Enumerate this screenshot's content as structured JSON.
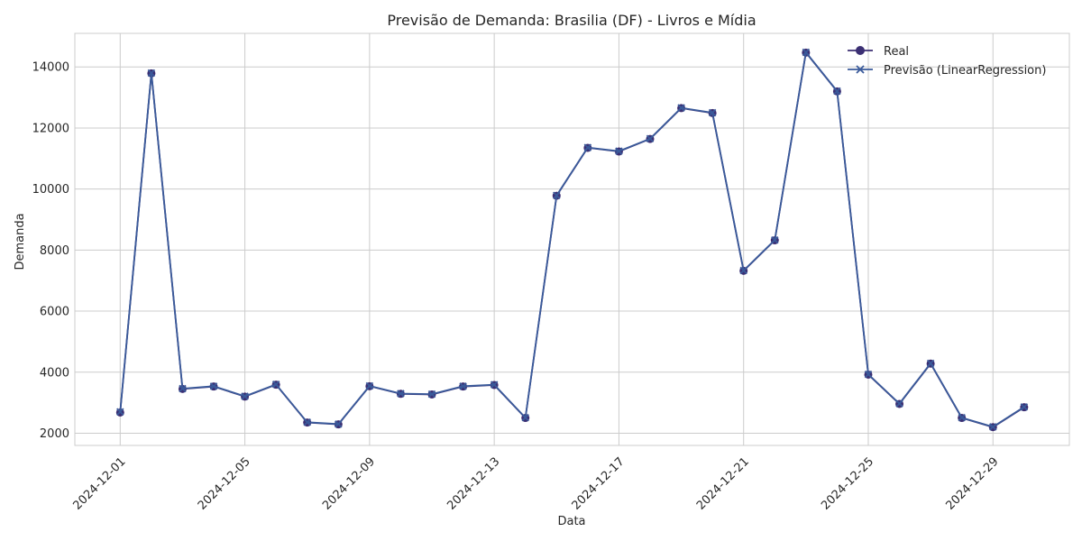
{
  "chart_data": {
    "type": "line",
    "title": "Previsão de Demanda: Brasilia (DF) - Livros e Mídia",
    "xlabel": "Data",
    "ylabel": "Demanda",
    "ylim": [
      1600,
      15100
    ],
    "yticks": [
      2000,
      4000,
      6000,
      8000,
      10000,
      12000,
      14000
    ],
    "xticks": [
      "2024-12-01",
      "2024-12-05",
      "2024-12-09",
      "2024-12-13",
      "2024-12-17",
      "2024-12-21",
      "2024-12-25",
      "2024-12-29"
    ],
    "grid": true,
    "legend_position": "top-right",
    "x": [
      "2024-12-01",
      "2024-12-02",
      "2024-12-03",
      "2024-12-04",
      "2024-12-05",
      "2024-12-06",
      "2024-12-07",
      "2024-12-08",
      "2024-12-09",
      "2024-12-10",
      "2024-12-11",
      "2024-12-12",
      "2024-12-13",
      "2024-12-14",
      "2024-12-15",
      "2024-12-16",
      "2024-12-17",
      "2024-12-18",
      "2024-12-19",
      "2024-12-20",
      "2024-12-21",
      "2024-12-22",
      "2024-12-23",
      "2024-12-24",
      "2024-12-25",
      "2024-12-26",
      "2024-12-27",
      "2024-12-28",
      "2024-12-29",
      "2024-12-30"
    ],
    "series": [
      {
        "name": "Real",
        "marker": "circle",
        "color": "#3b2f73",
        "values": [
          2680,
          13790,
          3450,
          3530,
          3200,
          3590,
          2350,
          2290,
          3540,
          3290,
          3270,
          3530,
          3580,
          2500,
          9780,
          11350,
          11230,
          11640,
          12650,
          12490,
          7320,
          8320,
          14470,
          13200,
          3920,
          2960,
          4280,
          2500,
          2200,
          2850
        ]
      },
      {
        "name": "Previsão (LinearRegression)",
        "marker": "x",
        "color": "#3a5a9a",
        "values": [
          2700,
          13800,
          3460,
          3540,
          3210,
          3600,
          2360,
          2300,
          3550,
          3300,
          3280,
          3540,
          3590,
          2510,
          9790,
          11360,
          11240,
          11650,
          12660,
          12500,
          7330,
          8330,
          14480,
          13210,
          3930,
          2970,
          4290,
          2510,
          2210,
          2860
        ]
      }
    ]
  }
}
